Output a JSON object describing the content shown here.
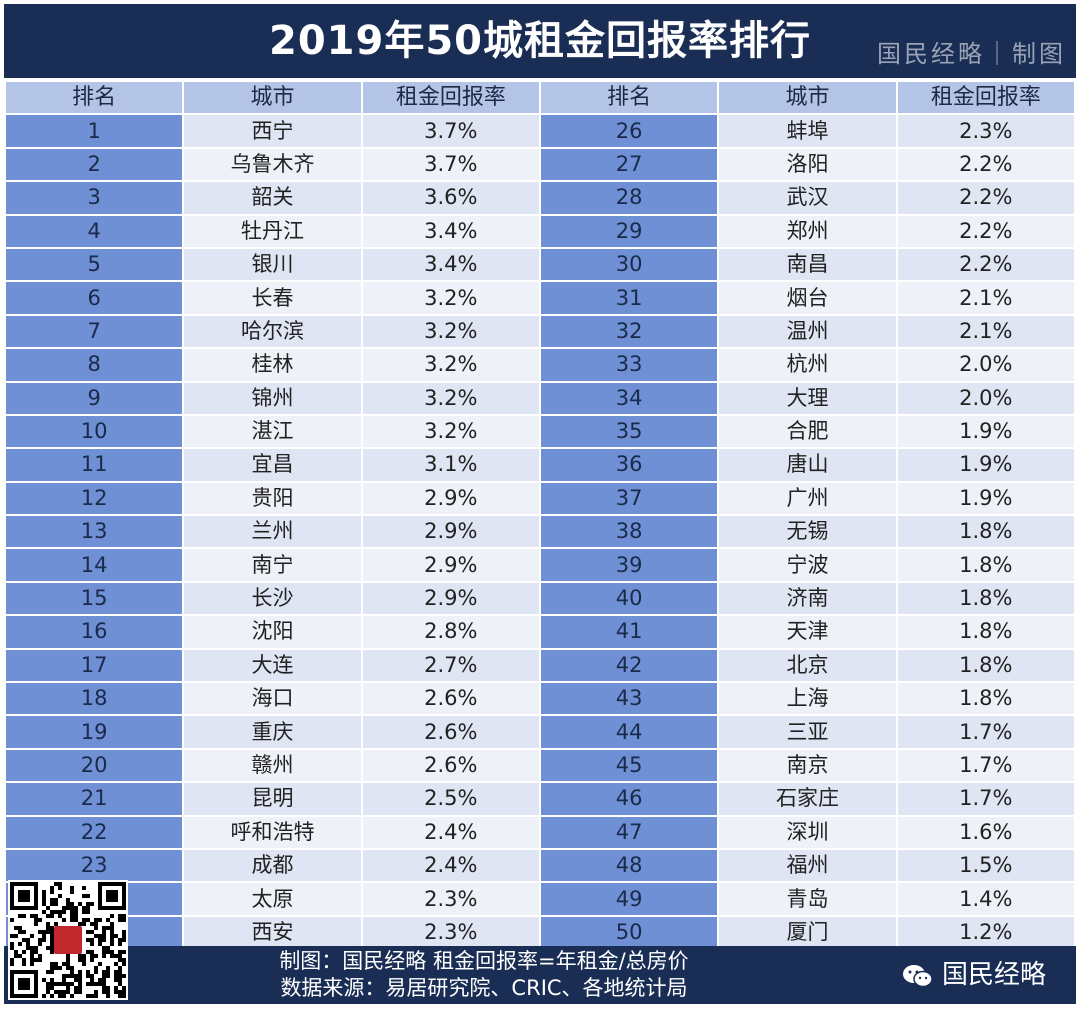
{
  "title": "2019年50城租金回报率排行",
  "title_brand": "国民经略｜制图",
  "columns": [
    "排名",
    "城市",
    "租金回报率",
    "排名",
    "城市",
    "租金回报率"
  ],
  "rows": [
    {
      "r1": "1",
      "c1": "西宁",
      "v1": "3.7%",
      "r2": "26",
      "c2": "蚌埠",
      "v2": "2.3%"
    },
    {
      "r1": "2",
      "c1": "乌鲁木齐",
      "v1": "3.7%",
      "r2": "27",
      "c2": "洛阳",
      "v2": "2.2%"
    },
    {
      "r1": "3",
      "c1": "韶关",
      "v1": "3.6%",
      "r2": "28",
      "c2": "武汉",
      "v2": "2.2%"
    },
    {
      "r1": "4",
      "c1": "牡丹江",
      "v1": "3.4%",
      "r2": "29",
      "c2": "郑州",
      "v2": "2.2%"
    },
    {
      "r1": "5",
      "c1": "银川",
      "v1": "3.4%",
      "r2": "30",
      "c2": "南昌",
      "v2": "2.2%"
    },
    {
      "r1": "6",
      "c1": "长春",
      "v1": "3.2%",
      "r2": "31",
      "c2": "烟台",
      "v2": "2.1%"
    },
    {
      "r1": "7",
      "c1": "哈尔滨",
      "v1": "3.2%",
      "r2": "32",
      "c2": "温州",
      "v2": "2.1%"
    },
    {
      "r1": "8",
      "c1": "桂林",
      "v1": "3.2%",
      "r2": "33",
      "c2": "杭州",
      "v2": "2.0%"
    },
    {
      "r1": "9",
      "c1": "锦州",
      "v1": "3.2%",
      "r2": "34",
      "c2": "大理",
      "v2": "2.0%"
    },
    {
      "r1": "10",
      "c1": "湛江",
      "v1": "3.2%",
      "r2": "35",
      "c2": "合肥",
      "v2": "1.9%"
    },
    {
      "r1": "11",
      "c1": "宜昌",
      "v1": "3.1%",
      "r2": "36",
      "c2": "唐山",
      "v2": "1.9%"
    },
    {
      "r1": "12",
      "c1": "贵阳",
      "v1": "2.9%",
      "r2": "37",
      "c2": "广州",
      "v2": "1.9%"
    },
    {
      "r1": "13",
      "c1": "兰州",
      "v1": "2.9%",
      "r2": "38",
      "c2": "无锡",
      "v2": "1.8%"
    },
    {
      "r1": "14",
      "c1": "南宁",
      "v1": "2.9%",
      "r2": "39",
      "c2": "宁波",
      "v2": "1.8%"
    },
    {
      "r1": "15",
      "c1": "长沙",
      "v1": "2.9%",
      "r2": "40",
      "c2": "济南",
      "v2": "1.8%"
    },
    {
      "r1": "16",
      "c1": "沈阳",
      "v1": "2.8%",
      "r2": "41",
      "c2": "天津",
      "v2": "1.8%"
    },
    {
      "r1": "17",
      "c1": "大连",
      "v1": "2.7%",
      "r2": "42",
      "c2": "北京",
      "v2": "1.8%"
    },
    {
      "r1": "18",
      "c1": "海口",
      "v1": "2.6%",
      "r2": "43",
      "c2": "上海",
      "v2": "1.8%"
    },
    {
      "r1": "19",
      "c1": "重庆",
      "v1": "2.6%",
      "r2": "44",
      "c2": "三亚",
      "v2": "1.7%"
    },
    {
      "r1": "20",
      "c1": "赣州",
      "v1": "2.6%",
      "r2": "45",
      "c2": "南京",
      "v2": "1.7%"
    },
    {
      "r1": "21",
      "c1": "昆明",
      "v1": "2.5%",
      "r2": "46",
      "c2": "石家庄",
      "v2": "1.7%"
    },
    {
      "r1": "22",
      "c1": "呼和浩特",
      "v1": "2.4%",
      "r2": "47",
      "c2": "深圳",
      "v2": "1.6%"
    },
    {
      "r1": "23",
      "c1": "成都",
      "v1": "2.4%",
      "r2": "48",
      "c2": "福州",
      "v2": "1.5%"
    },
    {
      "r1": "",
      "c1": "太原",
      "v1": "2.3%",
      "r2": "49",
      "c2": "青岛",
      "v2": "1.4%"
    },
    {
      "r1": "",
      "c1": "西安",
      "v1": "2.3%",
      "r2": "50",
      "c2": "厦门",
      "v2": "1.2%"
    }
  ],
  "footer": {
    "line1": "制图：国民经略  租金回报率=年租金/总房价",
    "line2": "数据来源：易居研究院、CRIC、各地统计局",
    "brand": "国民经略"
  },
  "qr_seal_text": "国民经略",
  "colors": {
    "title_bg": "#1a2e55",
    "header_bg": "#b4c4e6",
    "rank_bg": "#6f90d4",
    "cell_bg": "#dfe5f3"
  }
}
